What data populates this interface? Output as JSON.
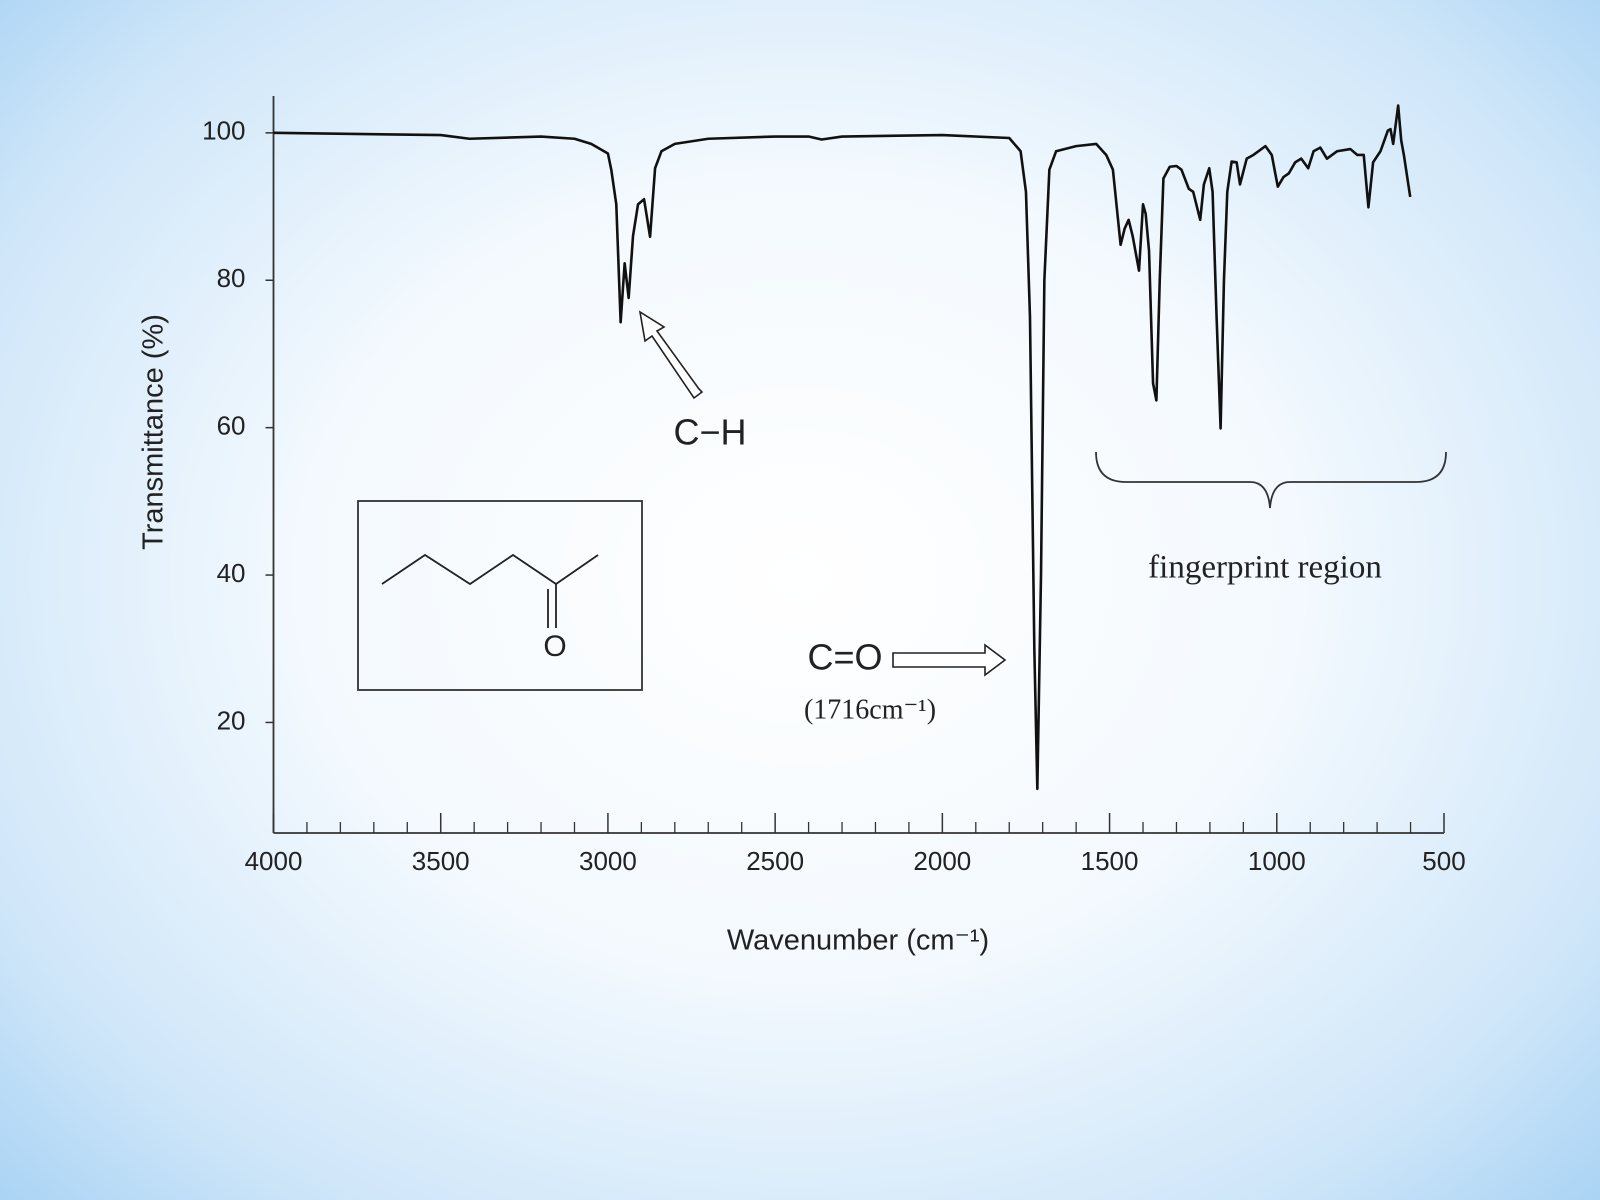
{
  "chart_data": {
    "type": "line",
    "x_label": "Wavenumber (cm⁻¹)",
    "y_label": "Transmittance (%)",
    "xlim": [
      4000,
      500
    ],
    "ylim": [
      5,
      105
    ],
    "xticks": [
      4000,
      3500,
      3000,
      2500,
      2000,
      1500,
      1000,
      500
    ],
    "x_minor_ticks": [
      3900,
      3800,
      3700,
      3600,
      3400,
      3300,
      3200,
      3100,
      2900,
      2800,
      2700,
      2600,
      2400,
      2300,
      2200,
      2100,
      1900,
      1800,
      1700,
      1600,
      1400,
      1300,
      1200,
      1100,
      900,
      800,
      700,
      600
    ],
    "yticks": [
      20,
      40,
      60,
      80,
      100
    ],
    "x": [
      4000,
      3500,
      3414,
      3200,
      3100,
      3050,
      3000,
      2990,
      2975,
      2962,
      2950,
      2938,
      2925,
      2910,
      2892,
      2874,
      2859,
      2840,
      2800,
      2700,
      2500,
      2400,
      2361,
      2300,
      2000,
      1800,
      1766,
      1750,
      1738,
      1725,
      1716,
      1705,
      1695,
      1680,
      1660,
      1600,
      1540,
      1510,
      1490,
      1467,
      1455,
      1443,
      1431,
      1412,
      1400,
      1392,
      1382,
      1370,
      1360,
      1350,
      1339,
      1320,
      1300,
      1285,
      1263,
      1250,
      1229,
      1218,
      1202,
      1192,
      1180,
      1168,
      1158,
      1148,
      1135,
      1120,
      1110,
      1090,
      1070,
      1034,
      1015,
      997,
      980,
      964,
      945,
      927,
      906,
      890,
      870,
      850,
      820,
      780,
      759,
      740,
      726,
      712,
      690,
      668,
      660,
      652,
      637,
      628,
      620,
      601
    ],
    "series": [
      {
        "color": "#111111",
        "values": [
          100,
          99.7,
          99.2,
          99.5,
          99.2,
          98.5,
          97.2,
          95,
          90.3,
          74.3,
          82.3,
          77.6,
          86,
          90.3,
          91,
          85.9,
          95.2,
          97.5,
          98.5,
          99.2,
          99.5,
          99.5,
          99.1,
          99.5,
          99.7,
          99.3,
          97.5,
          92,
          75,
          30,
          11,
          40,
          80,
          95,
          97.5,
          98.2,
          98.5,
          97,
          95,
          84.8,
          87,
          88.2,
          86,
          81.3,
          90.3,
          89,
          84,
          66,
          63.7,
          80,
          93.8,
          95.4,
          95.5,
          95,
          92.4,
          92,
          88.2,
          93,
          95.2,
          92,
          75,
          59.9,
          80,
          92,
          96.1,
          96,
          93,
          96.5,
          97,
          98.2,
          97,
          92.7,
          94,
          94.5,
          96,
          96.5,
          95.2,
          97.5,
          98,
          96.5,
          97.5,
          97.8,
          97,
          97,
          89.9,
          96,
          97.5,
          100.3,
          100.5,
          98.5,
          103.7,
          99,
          97,
          91.3
        ]
      }
    ],
    "annotations": [
      "C−H",
      "C=O",
      "(1716cm⁻¹)",
      "fingerprint region",
      "O"
    ]
  }
}
